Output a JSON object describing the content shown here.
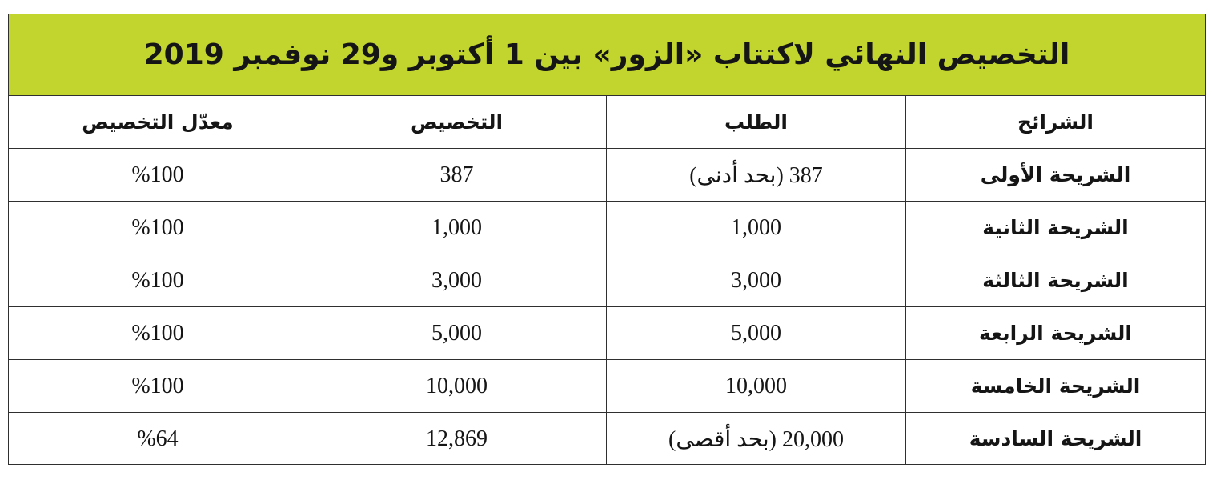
{
  "title": "التخصيص النهائي لاكتتاب «الزور» بين 1 أكتوبر و29 نوفمبر 2019",
  "colors": {
    "header_bar": "#c2d42e",
    "border": "#2f2f2f",
    "text": "#151515"
  },
  "columns": [
    "الشرائح",
    "الطلب",
    "التخصيص",
    "معدّل التخصيص"
  ],
  "rows": [
    {
      "tranche": "الشريحة الأولى",
      "demand": "387 (بحد أدنى)",
      "allocation": "387",
      "rate": "%100"
    },
    {
      "tranche": "الشريحة الثانية",
      "demand": "1,000",
      "allocation": "1,000",
      "rate": "%100"
    },
    {
      "tranche": "الشريحة الثالثة",
      "demand": "3,000",
      "allocation": "3,000",
      "rate": "%100"
    },
    {
      "tranche": "الشريحة الرابعة",
      "demand": "5,000",
      "allocation": "5,000",
      "rate": "%100"
    },
    {
      "tranche": "الشريحة الخامسة",
      "demand": "10,000",
      "allocation": "10,000",
      "rate": "%100"
    },
    {
      "tranche": "الشريحة السادسة",
      "demand": "20,000 (بحد أقصى)",
      "allocation": "12,869",
      "rate": "%64"
    }
  ]
}
